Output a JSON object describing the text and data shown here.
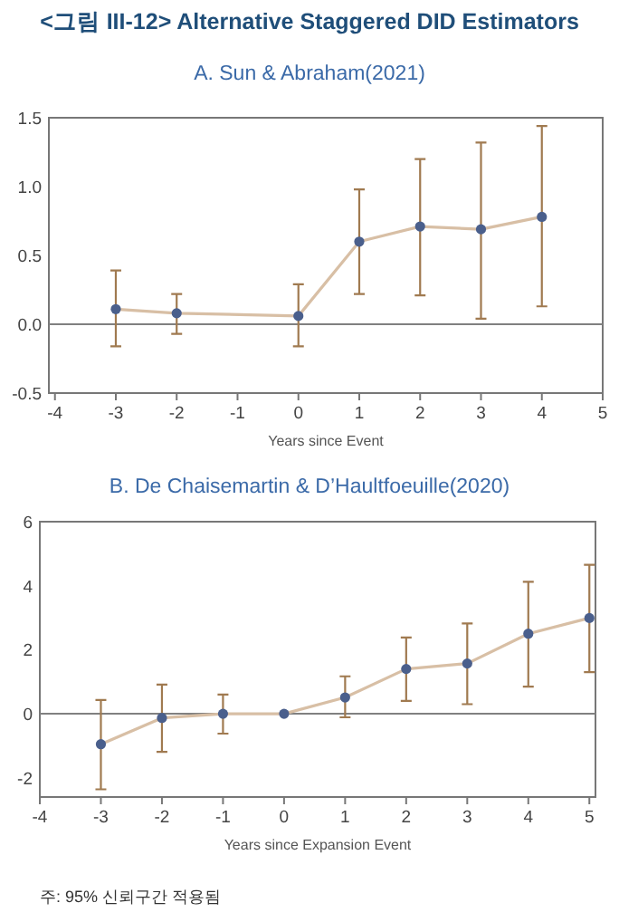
{
  "chart_data": [
    {
      "type": "line",
      "title": "<그림 III-12> Alternative Staggered DID Estimators",
      "subtitle": "A. Sun & Abraham(2021)",
      "xlabel": "Years since Event",
      "series": [
        {
          "color": "#4a5f8c",
          "x": [
            -3,
            -2,
            0,
            1,
            2,
            3,
            4
          ],
          "values": [
            0.11,
            0.08,
            0.06,
            0.6,
            0.71,
            0.69,
            0.78
          ],
          "errors": [
            [
              -0.16,
              0.39
            ],
            [
              -0.07,
              0.22
            ],
            [
              -0.16,
              0.29
            ],
            [
              0.22,
              0.98
            ],
            [
              0.21,
              1.2
            ],
            [
              0.04,
              1.32
            ],
            [
              0.13,
              1.44
            ]
          ]
        }
      ],
      "xlim": [
        -4.1,
        5
      ],
      "xticks": [
        -4,
        -3,
        -2,
        -1,
        0,
        1,
        2,
        3,
        4,
        5
      ],
      "ylim": [
        -0.5,
        1.5
      ],
      "yticks": [
        {
          "value": -0.5,
          "label": "-0.5"
        },
        {
          "value": 0,
          "label": "0.0"
        },
        0.5,
        {
          "value": 1,
          "label": "1.0"
        },
        1.5
      ],
      "ref_lines": [
        {
          "axis": "y",
          "value": 0,
          "color": "#808080"
        }
      ],
      "marker": "circle",
      "line_style": "solid"
    },
    {
      "type": "line",
      "title": "B. De Chaisemartin & D’Haultfoeuille(2020)",
      "xlabel": "Years since Expansion Event",
      "series": [
        {
          "color": "#4a5f8c",
          "x": [
            -3,
            -2,
            -1,
            0,
            1,
            2,
            3,
            4,
            5
          ],
          "values": [
            -0.95,
            -0.13,
            0,
            0,
            0.51,
            1.4,
            1.57,
            2.5,
            2.99
          ],
          "errors": [
            [
              -2.36,
              0.43
            ],
            [
              -1.19,
              0.91
            ],
            [
              -0.62,
              0.6
            ],
            null,
            [
              -0.11,
              1.17
            ],
            [
              0.4,
              2.38
            ],
            [
              0.3,
              2.82
            ],
            [
              0.85,
              4.12
            ],
            [
              1.3,
              4.65
            ]
          ]
        }
      ],
      "xlim": [
        -4,
        5.1
      ],
      "xticks": [
        -4,
        -3,
        -2,
        -1,
        0,
        1,
        2,
        3,
        4,
        5
      ],
      "ylim": [
        -2.6,
        6
      ],
      "yticks": [
        -2,
        0,
        2,
        4,
        6
      ],
      "ref_lines": [
        {
          "axis": "y",
          "value": 0,
          "color": "#808080"
        }
      ],
      "marker": "circle",
      "line_style": "solid",
      "annotations": [
        "주: 95% 신뢰구간 적용됨"
      ]
    }
  ]
}
